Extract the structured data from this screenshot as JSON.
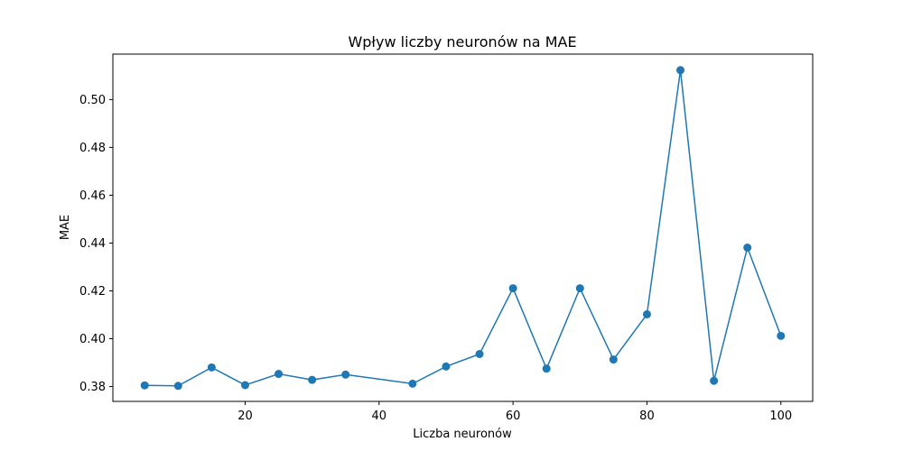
{
  "chart_data": {
    "type": "line",
    "title": "Wpływ liczby neuronów na MAE",
    "xlabel": "Liczba neuronów",
    "ylabel": "MAE",
    "xlim": [
      0.25,
      104.75
    ],
    "ylim": [
      0.3738,
      0.519
    ],
    "xticks": [
      20,
      40,
      60,
      80,
      100
    ],
    "xtick_labels": [
      "20",
      "40",
      "60",
      "80",
      "100"
    ],
    "yticks": [
      0.38,
      0.4,
      0.42,
      0.44,
      0.46,
      0.48,
      0.5
    ],
    "ytick_labels": [
      "0.38",
      "0.40",
      "0.42",
      "0.44",
      "0.46",
      "0.48",
      "0.50"
    ],
    "grid": false,
    "legend": "none",
    "series": [
      {
        "color": "#1f77b4",
        "marker": "circle",
        "x": [
          5,
          10,
          15,
          20,
          25,
          30,
          35,
          45,
          50,
          55,
          60,
          65,
          70,
          75,
          80,
          85,
          90,
          95,
          100
        ],
        "y": [
          0.3805,
          0.3803,
          0.388,
          0.3806,
          0.3853,
          0.3828,
          0.385,
          0.3812,
          0.3884,
          0.3936,
          0.4211,
          0.3875,
          0.4211,
          0.3913,
          0.4102,
          0.5123,
          0.3824,
          0.4381,
          0.4012
        ]
      }
    ]
  }
}
